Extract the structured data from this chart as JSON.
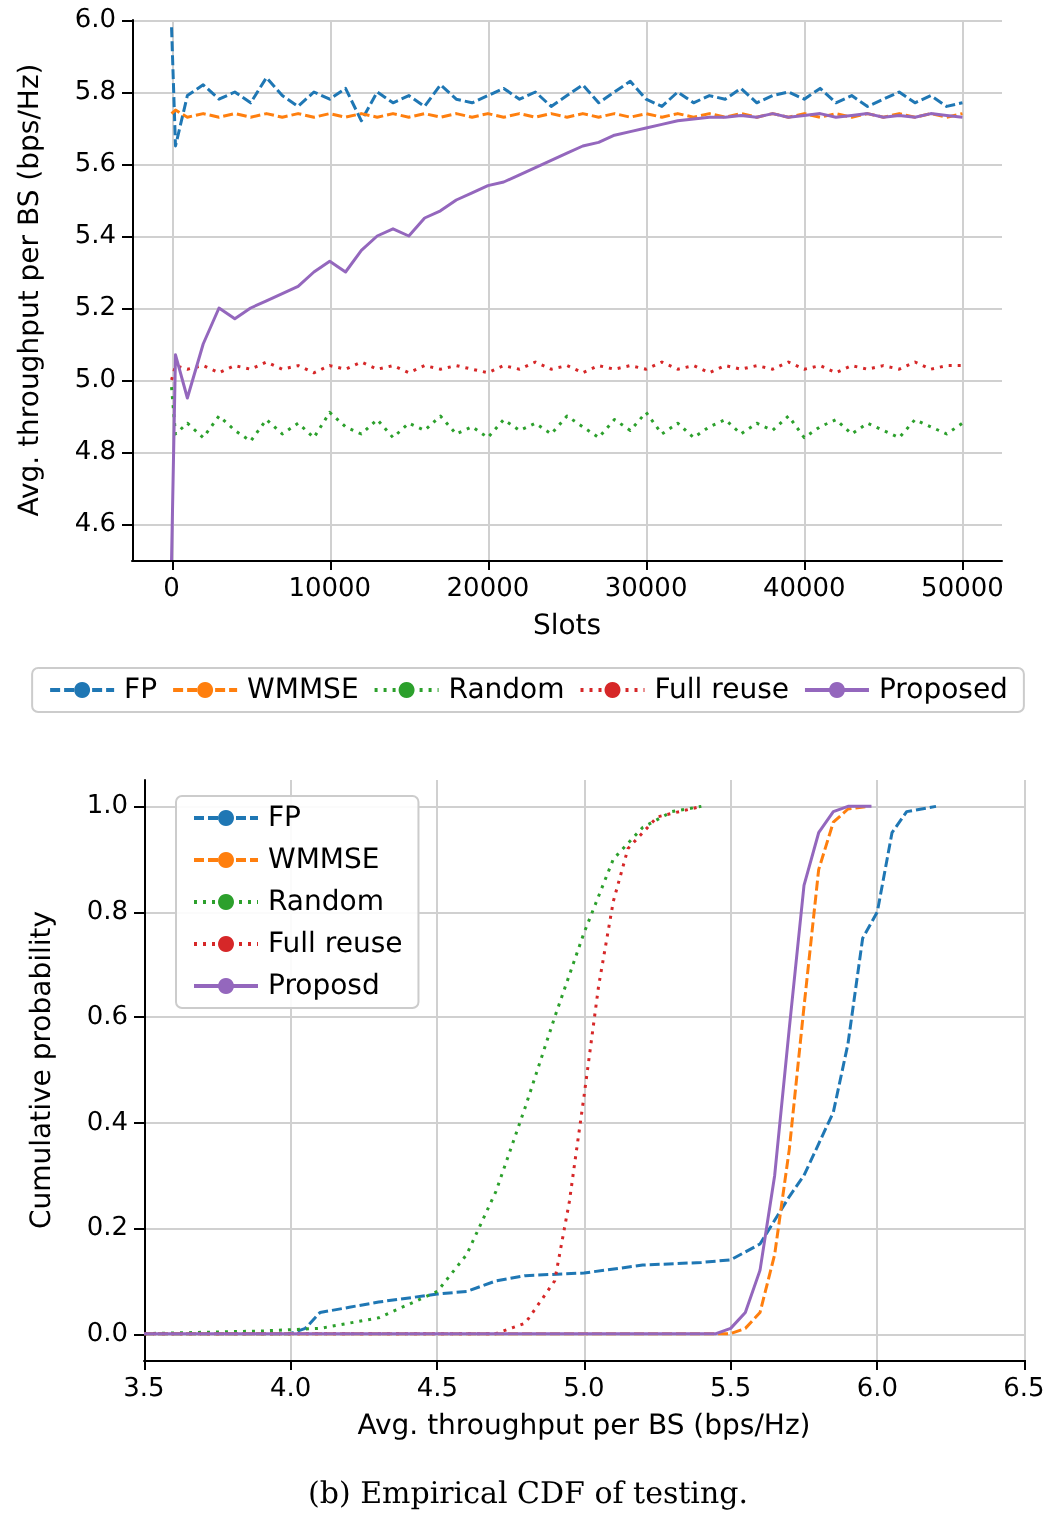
{
  "chart_data": [
    {
      "type": "line",
      "xlabel": "Slots",
      "ylabel": "Avg. throughput per BS (bps/Hz)",
      "x": [
        0,
        250,
        1000,
        2000,
        3000,
        4000,
        5000,
        6000,
        7000,
        8000,
        9000,
        10000,
        11000,
        12000,
        13000,
        14000,
        15000,
        16000,
        17000,
        18000,
        19000,
        20000,
        21000,
        22000,
        23000,
        24000,
        25000,
        26000,
        27000,
        28000,
        29000,
        30000,
        31000,
        32000,
        33000,
        34000,
        35000,
        36000,
        37000,
        38000,
        39000,
        40000,
        41000,
        42000,
        43000,
        44000,
        45000,
        46000,
        47000,
        48000,
        49000,
        50000
      ],
      "series": [
        {
          "name": "FP",
          "color": "#1f77b4",
          "line_style": "dashed",
          "values": [
            5.98,
            5.65,
            5.79,
            5.82,
            5.78,
            5.8,
            5.77,
            5.84,
            5.79,
            5.76,
            5.8,
            5.78,
            5.81,
            5.72,
            5.8,
            5.77,
            5.79,
            5.76,
            5.82,
            5.78,
            5.77,
            5.79,
            5.81,
            5.78,
            5.8,
            5.76,
            5.79,
            5.82,
            5.77,
            5.8,
            5.83,
            5.78,
            5.76,
            5.8,
            5.77,
            5.79,
            5.78,
            5.81,
            5.77,
            5.79,
            5.8,
            5.78,
            5.81,
            5.77,
            5.79,
            5.76,
            5.78,
            5.8,
            5.77,
            5.79,
            5.76,
            5.77
          ]
        },
        {
          "name": "WMMSE",
          "color": "#ff7f0e",
          "line_style": "dashed",
          "values": [
            5.74,
            5.75,
            5.73,
            5.74,
            5.73,
            5.74,
            5.73,
            5.74,
            5.73,
            5.74,
            5.73,
            5.74,
            5.73,
            5.74,
            5.73,
            5.74,
            5.73,
            5.74,
            5.73,
            5.74,
            5.73,
            5.74,
            5.73,
            5.74,
            5.73,
            5.74,
            5.73,
            5.74,
            5.73,
            5.74,
            5.73,
            5.74,
            5.73,
            5.74,
            5.73,
            5.74,
            5.73,
            5.74,
            5.73,
            5.74,
            5.73,
            5.74,
            5.73,
            5.74,
            5.73,
            5.74,
            5.73,
            5.74,
            5.73,
            5.74,
            5.73,
            5.74
          ]
        },
        {
          "name": "Random",
          "color": "#2ca02c",
          "line_style": "dotted",
          "values": [
            4.98,
            4.85,
            4.88,
            4.84,
            4.9,
            4.86,
            4.83,
            4.89,
            4.85,
            4.88,
            4.84,
            4.91,
            4.87,
            4.85,
            4.89,
            4.84,
            4.88,
            4.86,
            4.9,
            4.85,
            4.87,
            4.84,
            4.89,
            4.86,
            4.88,
            4.85,
            4.9,
            4.87,
            4.84,
            4.89,
            4.86,
            4.91,
            4.85,
            4.88,
            4.84,
            4.87,
            4.89,
            4.85,
            4.88,
            4.86,
            4.9,
            4.84,
            4.87,
            4.89,
            4.85,
            4.88,
            4.86,
            4.84,
            4.89,
            4.87,
            4.85,
            4.88
          ]
        },
        {
          "name": "Full reuse",
          "color": "#d62728",
          "line_style": "dotted",
          "values": [
            5.0,
            5.04,
            5.03,
            5.04,
            5.02,
            5.04,
            5.03,
            5.05,
            5.03,
            5.04,
            5.02,
            5.04,
            5.03,
            5.05,
            5.03,
            5.04,
            5.02,
            5.04,
            5.03,
            5.04,
            5.03,
            5.02,
            5.04,
            5.03,
            5.05,
            5.03,
            5.04,
            5.02,
            5.04,
            5.03,
            5.04,
            5.03,
            5.05,
            5.03,
            5.04,
            5.02,
            5.04,
            5.03,
            5.04,
            5.03,
            5.05,
            5.03,
            5.04,
            5.02,
            5.04,
            5.03,
            5.04,
            5.03,
            5.05,
            5.03,
            5.04,
            5.04
          ]
        },
        {
          "name": "Proposed",
          "color": "#9467bd",
          "line_style": "solid",
          "values": [
            4.5,
            5.07,
            4.95,
            5.1,
            5.2,
            5.17,
            5.2,
            5.22,
            5.24,
            5.26,
            5.3,
            5.33,
            5.3,
            5.36,
            5.4,
            5.42,
            5.4,
            5.45,
            5.47,
            5.5,
            5.52,
            5.54,
            5.55,
            5.57,
            5.59,
            5.61,
            5.63,
            5.65,
            5.66,
            5.68,
            5.69,
            5.7,
            5.71,
            5.72,
            5.725,
            5.73,
            5.73,
            5.735,
            5.73,
            5.74,
            5.73,
            5.735,
            5.74,
            5.73,
            5.735,
            5.74,
            5.73,
            5.735,
            5.73,
            5.74,
            5.735,
            5.73
          ]
        }
      ],
      "xlim": [
        -2500,
        52500
      ],
      "xticks": [
        0,
        10000,
        20000,
        30000,
        40000,
        50000
      ],
      "ylim": [
        4.5,
        6.0
      ],
      "yticks": [
        4.6,
        4.8,
        {
          "value": 5,
          "label": "5.0"
        },
        5.2,
        5.4,
        5.6,
        5.8,
        {
          "value": 6,
          "label": "6.0"
        }
      ],
      "grid": true,
      "legend": "bottom",
      "marker": "none"
    },
    {
      "type": "line",
      "xlabel": "Avg. throughput per BS (bps/Hz)",
      "ylabel": "Cumulative probability",
      "annotations": [
        "(b) Empirical CDF of testing."
      ],
      "series": [
        {
          "name": "FP",
          "color": "#1f77b4",
          "line_style": "dashed",
          "x": [
            3.5,
            4.0,
            4.05,
            4.1,
            4.2,
            4.3,
            4.5,
            4.6,
            4.7,
            4.8,
            5.0,
            5.2,
            5.4,
            5.5,
            5.6,
            5.7,
            5.75,
            5.8,
            5.85,
            5.9,
            5.95,
            6.0,
            6.05,
            6.1,
            6.2
          ],
          "values": [
            0,
            0,
            0.01,
            0.04,
            0.05,
            0.06,
            0.075,
            0.08,
            0.1,
            0.11,
            0.115,
            0.13,
            0.135,
            0.14,
            0.17,
            0.26,
            0.3,
            0.36,
            0.42,
            0.55,
            0.75,
            0.8,
            0.95,
            0.99,
            1.0
          ]
        },
        {
          "name": "WMMSE",
          "color": "#ff7f0e",
          "line_style": "dashed",
          "x": [
            3.5,
            5.5,
            5.55,
            5.6,
            5.65,
            5.7,
            5.75,
            5.8,
            5.85,
            5.9,
            5.97
          ],
          "values": [
            0,
            0,
            0.01,
            0.04,
            0.15,
            0.35,
            0.62,
            0.88,
            0.97,
            0.995,
            1.0
          ]
        },
        {
          "name": "Random",
          "color": "#2ca02c",
          "line_style": "dotted",
          "x": [
            3.5,
            3.9,
            4.1,
            4.3,
            4.5,
            4.6,
            4.7,
            4.8,
            4.9,
            5.0,
            5.1,
            5.2,
            5.3,
            5.4
          ],
          "values": [
            0,
            0.005,
            0.01,
            0.03,
            0.08,
            0.15,
            0.27,
            0.43,
            0.6,
            0.76,
            0.9,
            0.96,
            0.99,
            1.0
          ]
        },
        {
          "name": "Full reuse",
          "color": "#d62728",
          "line_style": "dotted",
          "x": [
            3.5,
            4.7,
            4.8,
            4.9,
            4.95,
            5.0,
            5.05,
            5.1,
            5.15,
            5.25,
            5.4
          ],
          "values": [
            0,
            0,
            0.02,
            0.1,
            0.25,
            0.45,
            0.66,
            0.82,
            0.92,
            0.98,
            1.0
          ]
        },
        {
          "name": "Proposd",
          "color": "#9467bd",
          "line_style": "solid",
          "x": [
            3.5,
            5.45,
            5.5,
            5.55,
            5.6,
            5.65,
            5.7,
            5.75,
            5.8,
            5.85,
            5.9,
            5.98
          ],
          "values": [
            0,
            0,
            0.01,
            0.04,
            0.12,
            0.3,
            0.58,
            0.85,
            0.95,
            0.99,
            1.0,
            1.0
          ]
        }
      ],
      "xlim": [
        3.5,
        6.5
      ],
      "xticks": [
        3.5,
        {
          "value": 4,
          "label": "4.0"
        },
        4.5,
        {
          "value": 5,
          "label": "5.0"
        },
        5.5,
        {
          "value": 6,
          "label": "6.0"
        },
        6.5
      ],
      "ylim": [
        -0.05,
        1.05
      ],
      "yticks": [
        {
          "value": 0,
          "label": "0.0"
        },
        0.2,
        0.4,
        0.6,
        0.8,
        {
          "value": 1,
          "label": "1.0"
        }
      ],
      "grid": true,
      "legend": "top left",
      "marker": "none"
    }
  ]
}
